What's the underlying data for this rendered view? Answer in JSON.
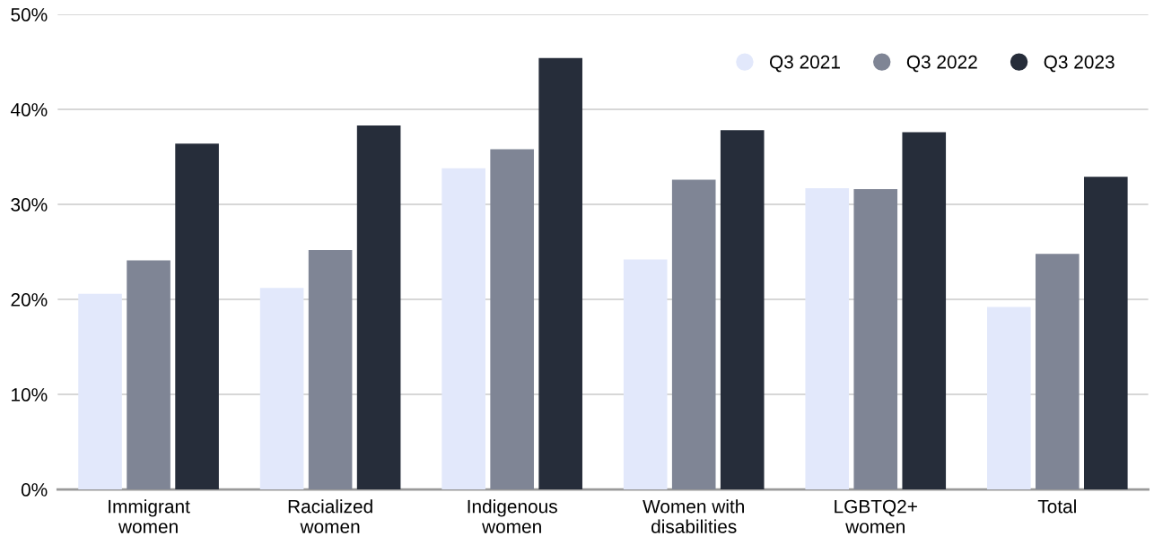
{
  "chart_data": {
    "type": "bar",
    "categories": [
      "Immigrant\nwomen",
      "Racialized\nwomen",
      "Indigenous\nwomen",
      "Women with\ndisabilities",
      "LGBTQ2+\nwomen",
      "Total"
    ],
    "series": [
      {
        "name": "Q3 2021",
        "color": "#e2e8fb",
        "values": [
          20.6,
          21.2,
          33.8,
          24.2,
          31.7,
          19.2
        ]
      },
      {
        "name": "Q3 2022",
        "color": "#7f8595",
        "values": [
          24.1,
          25.2,
          35.8,
          32.6,
          31.6,
          24.8
        ]
      },
      {
        "name": "Q3 2023",
        "color": "#262d3a",
        "values": [
          36.4,
          38.3,
          45.4,
          37.8,
          37.6,
          32.9
        ]
      }
    ],
    "ylim": [
      0,
      50
    ],
    "yticks": [
      {
        "value": 0,
        "label": "0%"
      },
      {
        "value": 10,
        "label": "10%"
      },
      {
        "value": 20,
        "label": "20%"
      },
      {
        "value": 30,
        "label": "30%"
      },
      {
        "value": 40,
        "label": "40%"
      },
      {
        "value": 50,
        "label": "50%"
      }
    ],
    "grid": "y",
    "legend": "top right"
  }
}
